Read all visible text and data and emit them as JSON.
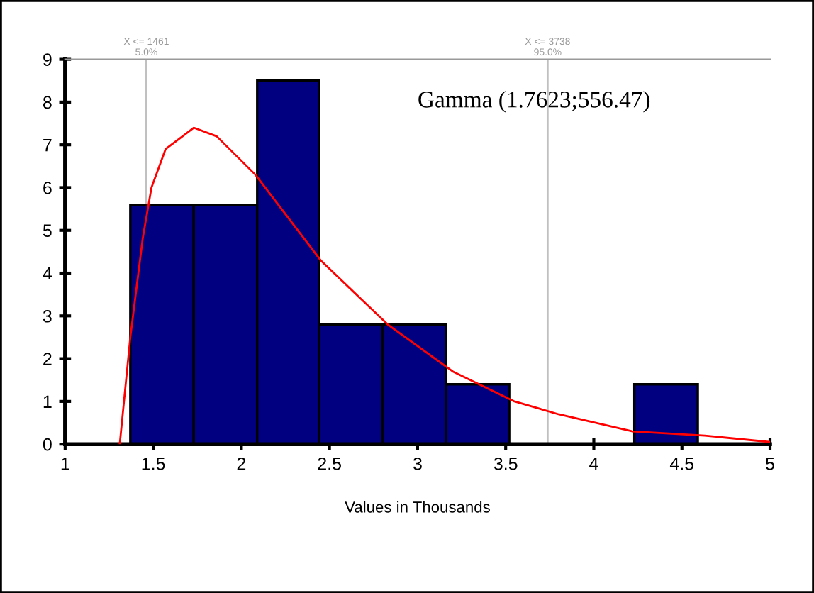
{
  "chart_data": {
    "type": "histogram",
    "xlabel": "Values in Thousands",
    "bins": [
      1.37,
      1.73,
      2.09,
      2.44,
      2.8,
      3.16,
      3.52,
      4.23,
      4.59
    ],
    "values": [
      5.6,
      5.6,
      8.5,
      2.8,
      2.8,
      1.4,
      0,
      1.4
    ],
    "color": "#000080",
    "series": [
      {
        "type": "line",
        "color": "#ff0000",
        "x": [
          1.31,
          1.37,
          1.44,
          1.49,
          1.57,
          1.73,
          1.86,
          2.08,
          2.45,
          2.83,
          3.2,
          3.55,
          3.8,
          4.22,
          4.63,
          5.0
        ],
        "values": [
          0,
          2.5,
          4.8,
          6.0,
          6.9,
          7.4,
          7.2,
          6.3,
          4.3,
          2.8,
          1.7,
          1.0,
          0.7,
          0.3,
          0.2,
          0.05
        ]
      }
    ],
    "annotations": [
      "Gamma (1.7623;556.47)"
    ],
    "ref_lines": [
      {
        "axis": "x",
        "value": 1.461,
        "label": "X <= 1461\n5.0%",
        "color": "#c0c0c0"
      },
      {
        "axis": "x",
        "value": 3.738,
        "label": "X <= 3738\n95.0%",
        "color": "#c0c0c0"
      }
    ],
    "xlim": [
      1,
      5
    ],
    "ylim": [
      0,
      9
    ],
    "xticks": [
      1,
      1.5,
      2,
      2.5,
      3,
      3.5,
      4,
      4.5,
      5
    ],
    "yticks": [
      0,
      1,
      2,
      3,
      4,
      5,
      6,
      7,
      8,
      9
    ],
    "grid": false
  }
}
